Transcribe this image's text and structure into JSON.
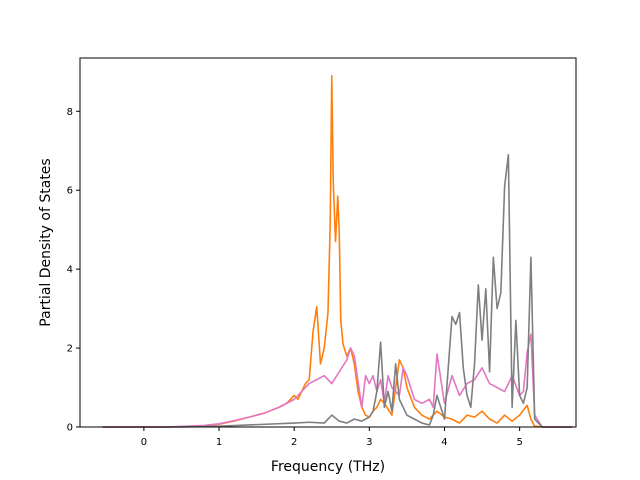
{
  "chart_data": {
    "type": "line",
    "title": "",
    "xlabel": "Frequency (THz)",
    "ylabel": "Partial Density of States",
    "xlim": [
      -0.85,
      5.75
    ],
    "ylim": [
      0,
      9.35
    ],
    "xticks": [
      0,
      1,
      2,
      3,
      4,
      5
    ],
    "yticks": [
      0,
      2,
      4,
      6,
      8
    ],
    "grid": false,
    "legend": "none",
    "series": [
      {
        "color": "#ff7f0e",
        "x": [
          -0.55,
          0.3,
          0.8,
          1.0,
          1.2,
          1.4,
          1.6,
          1.8,
          1.9,
          2.0,
          2.05,
          2.1,
          2.15,
          2.2,
          2.25,
          2.3,
          2.35,
          2.4,
          2.45,
          2.48,
          2.5,
          2.52,
          2.55,
          2.58,
          2.6,
          2.62,
          2.65,
          2.7,
          2.75,
          2.8,
          2.85,
          2.9,
          2.95,
          3.0,
          3.05,
          3.1,
          3.15,
          3.2,
          3.3,
          3.4,
          3.45,
          3.5,
          3.6,
          3.7,
          3.8,
          3.9,
          4.0,
          4.1,
          4.2,
          4.3,
          4.4,
          4.5,
          4.6,
          4.7,
          4.8,
          4.9,
          5.0,
          5.1,
          5.15,
          5.2,
          5.3,
          5.7
        ],
        "y": [
          0,
          0,
          0.03,
          0.07,
          0.15,
          0.25,
          0.35,
          0.5,
          0.6,
          0.8,
          0.7,
          0.9,
          1.1,
          1.2,
          2.4,
          3.05,
          1.6,
          2.0,
          2.9,
          5.2,
          8.9,
          6.2,
          4.7,
          5.85,
          4.9,
          2.7,
          2.1,
          1.8,
          2.0,
          1.6,
          0.9,
          0.5,
          0.3,
          0.25,
          0.4,
          0.5,
          0.7,
          0.6,
          0.3,
          1.7,
          1.5,
          1.0,
          0.5,
          0.3,
          0.2,
          0.4,
          0.25,
          0.2,
          0.1,
          0.3,
          0.25,
          0.4,
          0.2,
          0.1,
          0.3,
          0.15,
          0.3,
          0.55,
          0.2,
          0.02,
          0,
          0
        ]
      },
      {
        "color": "#e377c2",
        "x": [
          -0.55,
          0.3,
          0.8,
          1.0,
          1.2,
          1.4,
          1.6,
          1.8,
          2.0,
          2.1,
          2.2,
          2.3,
          2.4,
          2.5,
          2.6,
          2.7,
          2.75,
          2.8,
          2.9,
          2.95,
          3.0,
          3.05,
          3.1,
          3.15,
          3.2,
          3.25,
          3.3,
          3.4,
          3.45,
          3.5,
          3.6,
          3.7,
          3.8,
          3.85,
          3.9,
          4.0,
          4.1,
          4.2,
          4.3,
          4.4,
          4.5,
          4.6,
          4.7,
          4.8,
          4.9,
          5.0,
          5.05,
          5.1,
          5.15,
          5.2,
          5.3,
          5.7
        ],
        "y": [
          0,
          0,
          0.04,
          0.08,
          0.16,
          0.25,
          0.35,
          0.5,
          0.7,
          0.9,
          1.1,
          1.2,
          1.3,
          1.1,
          1.4,
          1.7,
          2.0,
          1.8,
          0.5,
          1.3,
          1.1,
          1.3,
          0.9,
          1.2,
          0.6,
          1.3,
          1.0,
          0.8,
          1.5,
          1.3,
          0.7,
          0.6,
          0.7,
          0.5,
          1.85,
          0.6,
          1.3,
          0.8,
          1.1,
          1.2,
          1.5,
          1.1,
          1.0,
          0.9,
          1.3,
          0.8,
          0.9,
          1.9,
          2.35,
          0.3,
          0,
          0
        ]
      },
      {
        "color": "#7f7f7f",
        "x": [
          -0.55,
          0.5,
          1.0,
          1.5,
          2.0,
          2.2,
          2.4,
          2.5,
          2.6,
          2.7,
          2.8,
          2.9,
          3.0,
          3.05,
          3.1,
          3.15,
          3.2,
          3.25,
          3.3,
          3.35,
          3.4,
          3.5,
          3.6,
          3.7,
          3.8,
          3.85,
          3.9,
          3.95,
          4.0,
          4.1,
          4.15,
          4.2,
          4.25,
          4.3,
          4.35,
          4.4,
          4.45,
          4.5,
          4.55,
          4.6,
          4.65,
          4.7,
          4.75,
          4.8,
          4.85,
          4.9,
          4.95,
          5.0,
          5.05,
          5.1,
          5.15,
          5.2,
          5.3,
          5.7
        ],
        "y": [
          0,
          0,
          0.02,
          0.06,
          0.1,
          0.12,
          0.1,
          0.3,
          0.15,
          0.1,
          0.2,
          0.15,
          0.25,
          0.4,
          0.9,
          2.15,
          0.5,
          0.9,
          0.4,
          1.6,
          0.7,
          0.3,
          0.2,
          0.1,
          0.05,
          0.3,
          0.8,
          0.5,
          0.2,
          2.8,
          2.6,
          2.9,
          1.5,
          0.8,
          0.5,
          1.6,
          3.6,
          2.2,
          3.5,
          1.4,
          4.3,
          3.0,
          3.4,
          6.1,
          6.9,
          0.5,
          2.7,
          0.8,
          0.6,
          1.0,
          4.3,
          0.2,
          0,
          0
        ]
      }
    ]
  }
}
